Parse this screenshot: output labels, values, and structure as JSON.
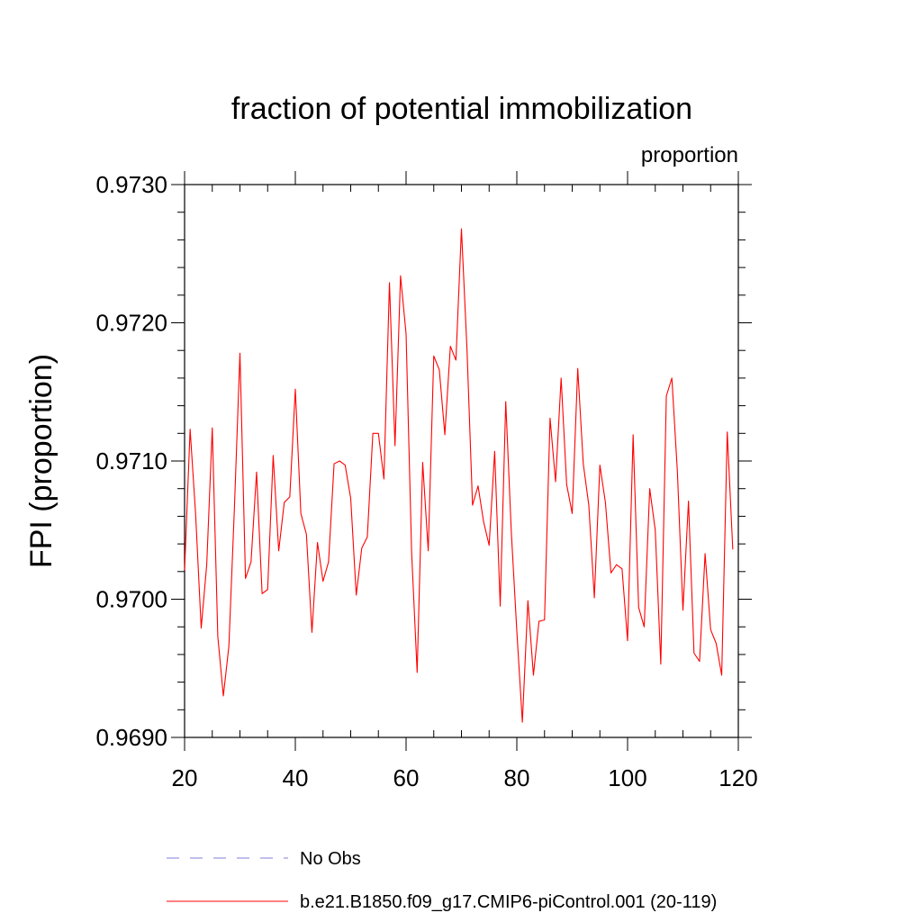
{
  "chart_data": {
    "type": "line",
    "title": "fraction of potential immobilization",
    "units_label": "proportion",
    "xlabel": "",
    "ylabel": "FPI  (proportion)",
    "xlim": [
      20,
      120
    ],
    "ylim": [
      0.969,
      0.973
    ],
    "xticks": [
      20,
      40,
      60,
      80,
      100,
      120
    ],
    "xtick_labels": [
      "20",
      "40",
      "60",
      "80",
      "100",
      "120"
    ],
    "yticks": [
      0.969,
      0.97,
      0.971,
      0.972,
      0.973
    ],
    "ytick_labels": [
      "0.9690",
      "0.9700",
      "0.9710",
      "0.9720",
      "0.9730"
    ],
    "grid": false,
    "series": [
      {
        "name": "No Obs",
        "color": "#7f7fd8",
        "style": "dashed",
        "x": [],
        "y": []
      },
      {
        "name": "b.e21.B1850.f09_g17.CMIP6-piControl.001 (20-119)",
        "color": "#ff0000",
        "style": "solid",
        "x": [
          20,
          21,
          22,
          23,
          24,
          25,
          26,
          27,
          28,
          29,
          30,
          31,
          32,
          33,
          34,
          35,
          36,
          37,
          38,
          39,
          40,
          41,
          42,
          43,
          44,
          45,
          46,
          47,
          48,
          49,
          50,
          51,
          52,
          53,
          54,
          55,
          56,
          57,
          58,
          59,
          60,
          61,
          62,
          63,
          64,
          65,
          66,
          67,
          68,
          69,
          70,
          71,
          72,
          73,
          74,
          75,
          76,
          77,
          78,
          79,
          80,
          81,
          82,
          83,
          84,
          85,
          86,
          87,
          88,
          89,
          90,
          91,
          92,
          93,
          94,
          95,
          96,
          97,
          98,
          99,
          100,
          101,
          102,
          103,
          104,
          105,
          106,
          107,
          108,
          109,
          110,
          111,
          112,
          113,
          114,
          115,
          116,
          117,
          118,
          119
        ],
        "y": [
          0.97021,
          0.97123,
          0.97061,
          0.96979,
          0.97025,
          0.97124,
          0.96973,
          0.9693,
          0.96966,
          0.97066,
          0.97178,
          0.97015,
          0.97027,
          0.97092,
          0.97004,
          0.97007,
          0.97104,
          0.97035,
          0.9707,
          0.97074,
          0.97152,
          0.97062,
          0.97047,
          0.96976,
          0.97041,
          0.97013,
          0.97027,
          0.97098,
          0.971,
          0.97097,
          0.97073,
          0.97003,
          0.97037,
          0.97045,
          0.9712,
          0.9712,
          0.97087,
          0.97229,
          0.97111,
          0.97234,
          0.97192,
          0.97034,
          0.96947,
          0.97099,
          0.97035,
          0.97176,
          0.97166,
          0.97119,
          0.97183,
          0.97173,
          0.97268,
          0.97181,
          0.97068,
          0.97082,
          0.97056,
          0.97039,
          0.97107,
          0.96995,
          0.97143,
          0.97049,
          0.96977,
          0.96911,
          0.96999,
          0.96945,
          0.96984,
          0.96985,
          0.97131,
          0.97085,
          0.9716,
          0.97083,
          0.97062,
          0.97167,
          0.97098,
          0.97068,
          0.97001,
          0.97097,
          0.9707,
          0.97019,
          0.97025,
          0.97022,
          0.9697,
          0.97119,
          0.96994,
          0.9698,
          0.9708,
          0.9705,
          0.96953,
          0.97147,
          0.9716,
          0.97092,
          0.96992,
          0.97071,
          0.96961,
          0.96955,
          0.97033,
          0.96978,
          0.96968,
          0.96945,
          0.97121,
          0.97036
        ]
      }
    ]
  }
}
